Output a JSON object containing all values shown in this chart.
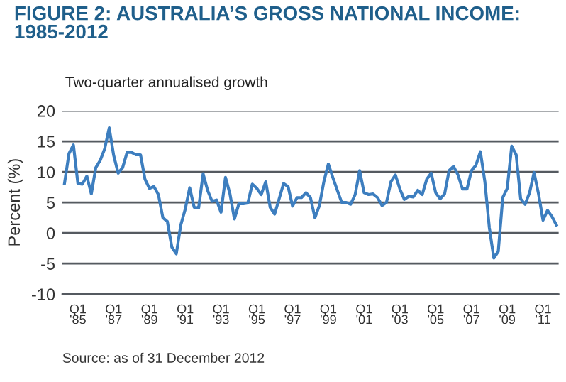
{
  "chart_data": {
    "type": "line",
    "title": "FIGURE 2: AUSTRALIA’S GROSS NATIONAL INCOME:\n1985-2012",
    "subtitle": "Two-quarter annualised growth",
    "ylabel": "Percent (%)",
    "annotations": [
      "Source: as of 31 December 2012"
    ],
    "series": [
      {
        "color": "#3d7ebf",
        "values": [
          8.1,
          13.0,
          14.4,
          8.1,
          8.0,
          9.3,
          6.4,
          10.7,
          11.9,
          13.8,
          17.2,
          12.7,
          9.8,
          10.7,
          13.2,
          13.2,
          12.8,
          12.8,
          8.8,
          7.3,
          7.6,
          6.3,
          2.5,
          1.9,
          -2.3,
          -3.4,
          1.3,
          3.9,
          7.4,
          4.2,
          4.1,
          9.7,
          7.0,
          5.2,
          5.4,
          3.4,
          9.1,
          6.4,
          2.3,
          4.8,
          4.8,
          4.9,
          8.0,
          7.3,
          6.3,
          8.4,
          4.2,
          3.1,
          5.6,
          8.1,
          7.6,
          4.4,
          5.8,
          5.8,
          6.6,
          5.8,
          2.5,
          4.5,
          8.4,
          11.3,
          9.1,
          7.0,
          5.0,
          5.0,
          4.7,
          6.3,
          10.2,
          6.6,
          6.3,
          6.4,
          5.8,
          4.5,
          5.0,
          8.4,
          9.5,
          7.2,
          5.5,
          6.0,
          5.9,
          7.0,
          6.3,
          8.8,
          9.8,
          6.6,
          5.6,
          6.4,
          10.2,
          10.9,
          9.5,
          7.2,
          7.2,
          10.2,
          11.1,
          13.3,
          8.4,
          0.9,
          -4.1,
          -3.0,
          5.8,
          7.3,
          14.2,
          12.8,
          5.6,
          4.7,
          6.6,
          9.9,
          6.4,
          2.1,
          3.7,
          2.7,
          1.3
        ]
      }
    ],
    "categories": [
      null,
      null,
      null,
      "Q1\n'85",
      null,
      null,
      null,
      null,
      null,
      null,
      null,
      "Q1\n'87",
      null,
      null,
      null,
      null,
      null,
      null,
      null,
      "Q1\n'89",
      null,
      null,
      null,
      null,
      null,
      null,
      null,
      "Q1\n'91",
      null,
      null,
      null,
      null,
      null,
      null,
      null,
      "Q1\n'93",
      null,
      null,
      null,
      null,
      null,
      null,
      null,
      "Q1\n'95",
      null,
      null,
      null,
      null,
      null,
      null,
      null,
      "Q1\n'97",
      null,
      null,
      null,
      null,
      null,
      null,
      null,
      "Q1\n'99",
      null,
      null,
      null,
      null,
      null,
      null,
      null,
      "Q1\n'01",
      null,
      null,
      null,
      null,
      null,
      null,
      null,
      "Q1\n'03",
      null,
      null,
      null,
      null,
      null,
      null,
      null,
      "Q1\n'05",
      null,
      null,
      null,
      null,
      null,
      null,
      null,
      "Q1\n'07",
      null,
      null,
      null,
      null,
      null,
      null,
      null,
      "Q1\n'09",
      null,
      null,
      null,
      null,
      null,
      null,
      null,
      "Q1\n'11",
      null,
      null,
      null
    ],
    "ylim": [
      -10,
      20
    ],
    "yticks": [
      -10,
      -5,
      0,
      5,
      10,
      15,
      20
    ],
    "grid": "y",
    "marker": "none",
    "line_style": "solid"
  }
}
